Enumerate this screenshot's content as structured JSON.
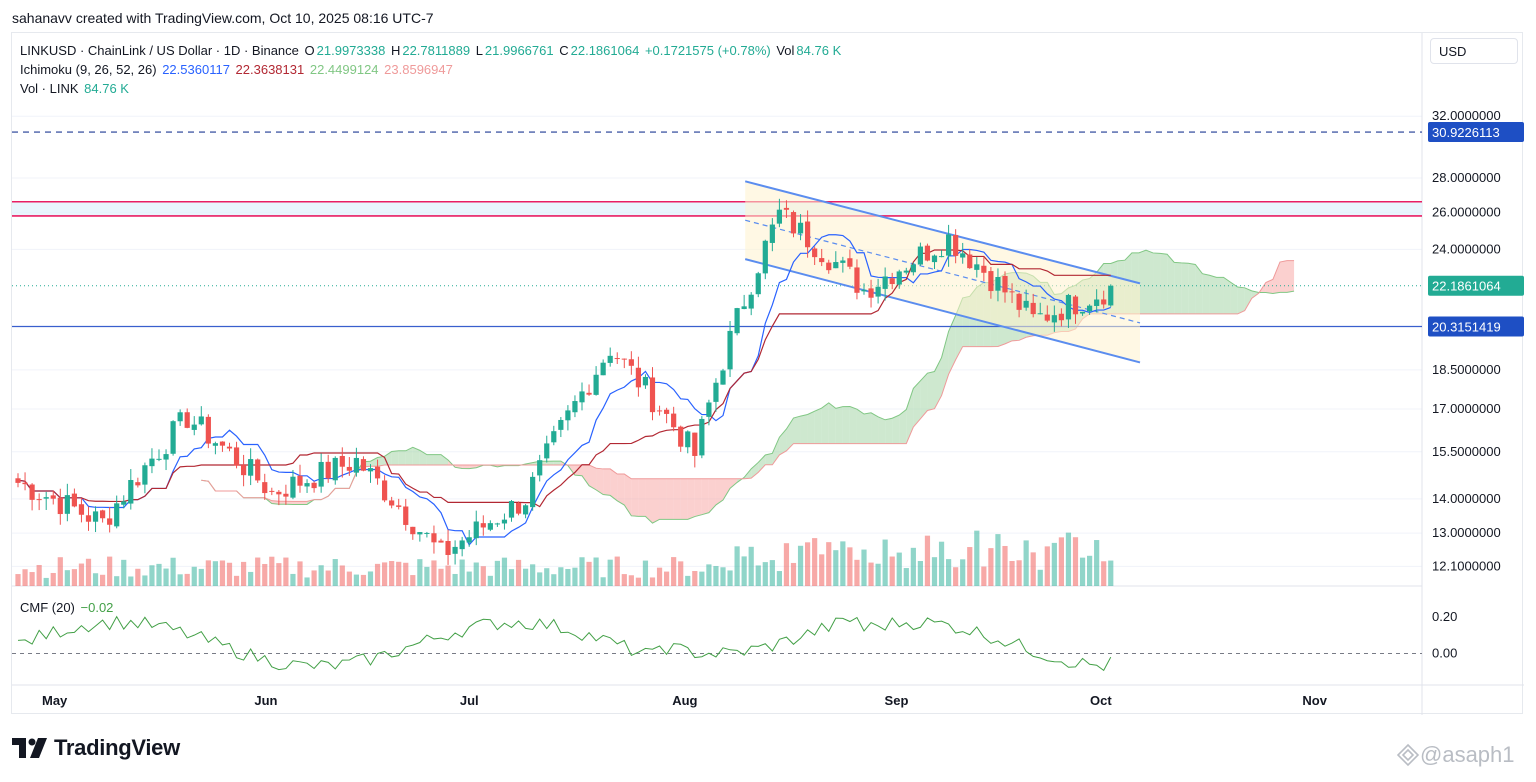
{
  "header": {
    "text": "sahanavv created with TradingView.com, Oct 10, 2025 08:16 UTC-7"
  },
  "currency": "USD",
  "legend": {
    "symbol": "LINKUSD · ChainLink / US Dollar · 1D · Binance",
    "open_label": "O",
    "open": "21.9973338",
    "high_label": "H",
    "high": "22.7811889",
    "low_label": "L",
    "low": "21.9966761",
    "close_label": "C",
    "close": "22.1861064",
    "change": "+0.1721575 (+0.78%)",
    "vol_label": "Vol",
    "vol": "84.76 K",
    "ichimoku_label": "Ichimoku (9, 26, 52, 26)",
    "ichi_conversion": "22.5360117",
    "ichi_base": "22.3638131",
    "ichi_lead1": "22.4499124",
    "ichi_lead2": "23.8596947",
    "vol_link_label": "Vol · LINK",
    "vol_link": "84.76 K",
    "cmf_label": "CMF (20)",
    "cmf_value": "−0.02"
  },
  "brand": {
    "name": "TradingView",
    "watermark": "@asaph1"
  },
  "colors": {
    "up": "#22ab94",
    "down": "#ef5350",
    "conversion": "#2962ff",
    "base": "#b22833",
    "cloud_up": "#a5d6a7",
    "cloud_down": "#f7a9a7",
    "channel": "#5b8def",
    "resistance": "#e91e63",
    "support": "#3a5fcd",
    "cmf": "#43a047"
  },
  "chart_data": {
    "type": "candlestick",
    "symbol": "LINKUSD",
    "timeframe": "1D",
    "x_axis": {
      "labels": [
        "May",
        "Jun",
        "Jul",
        "Aug",
        "Sep",
        "Oct",
        "Nov"
      ]
    },
    "y_axis": {
      "scale": "log",
      "range": [
        11.8,
        33.5
      ],
      "ticks": [
        "32.0000000",
        "28.0000000",
        "26.0000000",
        "24.0000000",
        "18.5000000",
        "17.0000000",
        "15.5000000",
        "14.0000000",
        "13.0000000",
        "12.1000000"
      ]
    },
    "last_price": 22.1861064,
    "last_price_label": "22.1861064",
    "horizontal_lines": [
      {
        "label": "30.9226113",
        "value": 30.9226113,
        "style": "dashed"
      },
      {
        "label": "20.3151419",
        "value": 20.3151419,
        "style": "solid"
      }
    ],
    "resistance_zone": [
      25.8,
      26.6
    ],
    "descending_channel": {
      "upper": [
        [
          0.52,
          27.8
        ],
        [
          0.8,
          22.3
        ]
      ],
      "lower": [
        [
          0.52,
          23.5
        ],
        [
          0.8,
          18.8
        ]
      ]
    },
    "trend_segments": [
      {
        "start": 14.5,
        "end": 13.3
      },
      {
        "start": 13.3,
        "end": 16.7
      },
      {
        "start": 16.7,
        "end": 14.2
      },
      {
        "start": 14.2,
        "end": 15.2
      },
      {
        "start": 15.2,
        "end": 12.4
      },
      {
        "start": 12.4,
        "end": 14.0
      },
      {
        "start": 14.0,
        "end": 19.4
      },
      {
        "start": 19.4,
        "end": 15.4
      },
      {
        "start": 15.4,
        "end": 25.9
      },
      {
        "start": 25.9,
        "end": 22.0
      },
      {
        "start": 22.0,
        "end": 24.6
      },
      {
        "start": 24.6,
        "end": 20.6
      },
      {
        "start": 20.6,
        "end": 22.19
      }
    ],
    "cmf": {
      "label": "CMF (20)",
      "last": -0.02,
      "ticks": [
        "0.20",
        "0.00"
      ],
      "range": [
        -0.15,
        0.33
      ]
    }
  }
}
